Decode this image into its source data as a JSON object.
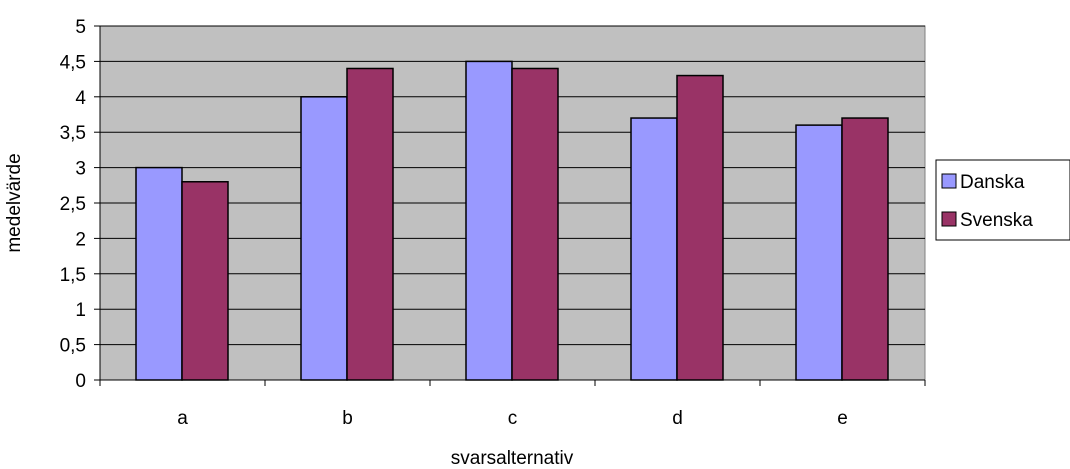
{
  "chart_data": {
    "type": "bar",
    "title": "",
    "xlabel": "svarsalternativ",
    "ylabel": "medelvärde",
    "categories": [
      "a",
      "b",
      "c",
      "d",
      "e"
    ],
    "series": [
      {
        "name": "Danska",
        "values": [
          3.0,
          4.0,
          4.5,
          3.7,
          3.6
        ],
        "color": "#9999FF"
      },
      {
        "name": "Svenska",
        "values": [
          2.8,
          4.4,
          4.4,
          4.3,
          3.7
        ],
        "color": "#993366"
      }
    ],
    "ylim": [
      0,
      5
    ],
    "yticks": [
      0,
      0.5,
      1,
      1.5,
      2,
      2.5,
      3,
      3.5,
      4,
      4.5,
      5
    ],
    "ytick_labels": [
      "0",
      "0,5",
      "1",
      "1,5",
      "2",
      "2,5",
      "3",
      "3,5",
      "4",
      "4,5",
      "5"
    ],
    "grid": true,
    "plot_background": "#C0C0C0",
    "legend_position": "right"
  }
}
